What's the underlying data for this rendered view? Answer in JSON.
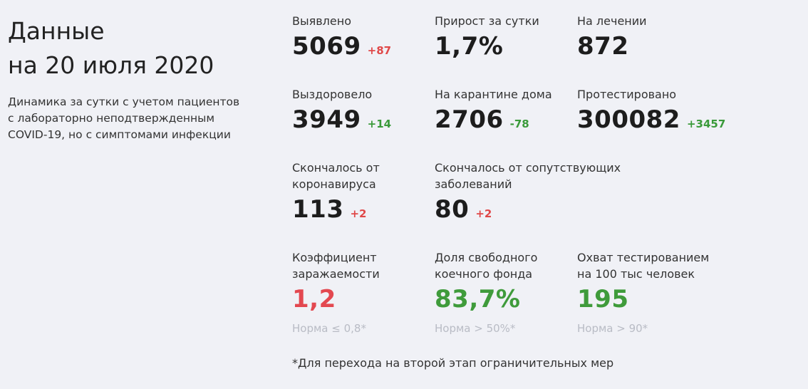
{
  "header": {
    "title_line1": "Данные",
    "title_line2": "на 20 июля 2020",
    "subtitle_line1": "Динамика за сутки с учетом пациентов",
    "subtitle_line2": "с лабораторно неподтвержденным",
    "subtitle_line3": "COVID-19, но с симптомами инфекции"
  },
  "stats": {
    "detected": {
      "label": "Выявлено",
      "value": "5069",
      "delta": "+87"
    },
    "growth": {
      "label": "Прирост за сутки",
      "value": "1,7%"
    },
    "treatment": {
      "label": "На лечении",
      "value": "872"
    },
    "recovered": {
      "label": "Выздоровело",
      "value": "3949",
      "delta": "+14"
    },
    "home_quarantine": {
      "label": "На карантине дома",
      "value": "2706",
      "delta": "-78"
    },
    "tested": {
      "label": "Протестировано",
      "value": "300082",
      "delta": "+3457"
    },
    "died_covid": {
      "label_line1": "Скончалось от",
      "label_line2": "коронавируса",
      "value": "113",
      "delta": "+2"
    },
    "died_other": {
      "label_line1": "Скончалось от сопутствующих",
      "label_line2": "заболеваний",
      "value": "80",
      "delta": "+2"
    },
    "infection_rate": {
      "label_line1": "Коэффициент",
      "label_line2": "заражаемости",
      "value": "1,2",
      "norm": "Норма ≤ 0,8*"
    },
    "free_beds": {
      "label_line1": "Доля свободного",
      "label_line2": "коечного фонда",
      "value": "83,7%",
      "norm": "Норма > 50%*"
    },
    "testing_coverage": {
      "label_line1": "Охват тестированием",
      "label_line2": "на 100 тыс человек",
      "value": "195",
      "norm": "Норма > 90*"
    }
  },
  "footnote": "*Для перехода на второй этап ограничительных мер",
  "colors": {
    "background": "#f0f1f6",
    "negative": "#e34850",
    "positive": "#3f9b3b",
    "muted": "#b9bcc5"
  }
}
